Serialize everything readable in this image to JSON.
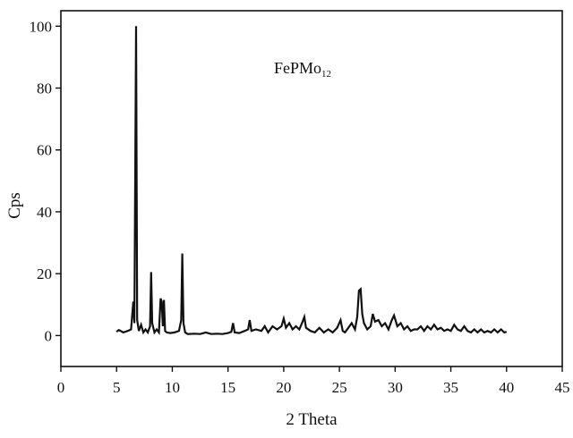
{
  "chart_data": {
    "type": "line",
    "title": "",
    "xlabel": "2 Theta",
    "ylabel": "Cps",
    "xlim": [
      0,
      45
    ],
    "ylim": [
      -10,
      105
    ],
    "xticks": [
      0,
      5,
      10,
      15,
      20,
      25,
      30,
      35,
      40,
      45
    ],
    "xtick_labels": [
      "0",
      "5",
      "10",
      "15",
      "20",
      "25",
      "30",
      "35",
      "40",
      "45"
    ],
    "yticks": [
      0,
      20,
      40,
      60,
      80,
      100
    ],
    "ytick_labels": [
      "0",
      "20",
      "40",
      "60",
      "80",
      "100"
    ],
    "grid": false,
    "legend": "none",
    "annotation": {
      "base": "FePMo",
      "subscript": "12"
    },
    "line_color": "#111111",
    "series": [
      {
        "x": [
          5.0,
          5.2,
          5.6,
          6.0,
          6.3,
          6.5,
          6.6,
          6.75,
          6.85,
          7.0,
          7.2,
          7.4,
          7.6,
          7.8,
          8.0,
          8.1,
          8.2,
          8.4,
          8.6,
          8.8,
          8.95,
          9.05,
          9.15,
          9.25,
          9.35,
          9.5,
          9.8,
          10.2,
          10.6,
          10.8,
          10.9,
          11.0,
          11.15,
          11.4,
          12.0,
          12.5,
          13.0,
          13.5,
          14.0,
          14.5,
          15.0,
          15.3,
          15.45,
          15.6,
          16.0,
          16.5,
          16.8,
          16.95,
          17.1,
          17.5,
          18.0,
          18.3,
          18.6,
          19.0,
          19.4,
          19.8,
          20.0,
          20.2,
          20.5,
          20.8,
          21.1,
          21.4,
          21.7,
          21.85,
          22.0,
          22.4,
          22.8,
          23.2,
          23.6,
          24.0,
          24.4,
          24.8,
          25.1,
          25.3,
          25.5,
          25.8,
          26.1,
          26.4,
          26.6,
          26.75,
          26.9,
          27.05,
          27.2,
          27.5,
          27.8,
          28.0,
          28.2,
          28.5,
          28.8,
          29.1,
          29.4,
          29.7,
          29.9,
          30.2,
          30.5,
          30.8,
          31.1,
          31.4,
          31.7,
          32.0,
          32.3,
          32.6,
          32.9,
          33.2,
          33.5,
          33.8,
          34.1,
          34.4,
          34.7,
          35.0,
          35.3,
          35.6,
          35.9,
          36.2,
          36.5,
          36.8,
          37.1,
          37.4,
          37.7,
          38.0,
          38.3,
          38.6,
          38.9,
          39.2,
          39.5,
          39.8,
          40.0
        ],
        "y": [
          1.2,
          1.8,
          1.0,
          1.5,
          2.0,
          11.0,
          4.0,
          100.0,
          5.0,
          1.5,
          3.5,
          1.0,
          2.0,
          1.0,
          3.0,
          20.5,
          4.0,
          1.0,
          2.0,
          1.0,
          12.0,
          11.0,
          3.0,
          11.5,
          1.5,
          1.0,
          0.8,
          1.0,
          1.5,
          5.0,
          26.5,
          4.0,
          1.0,
          0.5,
          0.6,
          0.5,
          1.0,
          0.5,
          0.6,
          0.5,
          0.8,
          1.2,
          4.0,
          1.0,
          0.8,
          1.5,
          2.0,
          5.0,
          1.5,
          2.0,
          1.5,
          3.0,
          1.0,
          3.0,
          2.0,
          3.0,
          5.5,
          2.5,
          4.0,
          2.0,
          3.0,
          2.0,
          4.5,
          6.0,
          2.5,
          1.5,
          1.0,
          2.5,
          1.0,
          2.0,
          1.0,
          2.5,
          5.0,
          1.5,
          1.0,
          2.5,
          4.0,
          2.0,
          6.0,
          14.5,
          15.0,
          7.0,
          4.0,
          2.0,
          3.0,
          7.0,
          4.5,
          5.0,
          3.0,
          4.0,
          2.0,
          5.0,
          6.5,
          3.0,
          4.0,
          2.0,
          3.0,
          1.5,
          2.0,
          2.0,
          3.0,
          1.5,
          3.0,
          2.0,
          3.5,
          2.0,
          2.5,
          1.5,
          2.0,
          1.5,
          3.5,
          2.0,
          1.5,
          3.0,
          1.5,
          1.0,
          2.0,
          1.0,
          2.0,
          1.0,
          1.5,
          1.0,
          2.0,
          1.0,
          2.0,
          1.0,
          1.2
        ]
      }
    ]
  }
}
